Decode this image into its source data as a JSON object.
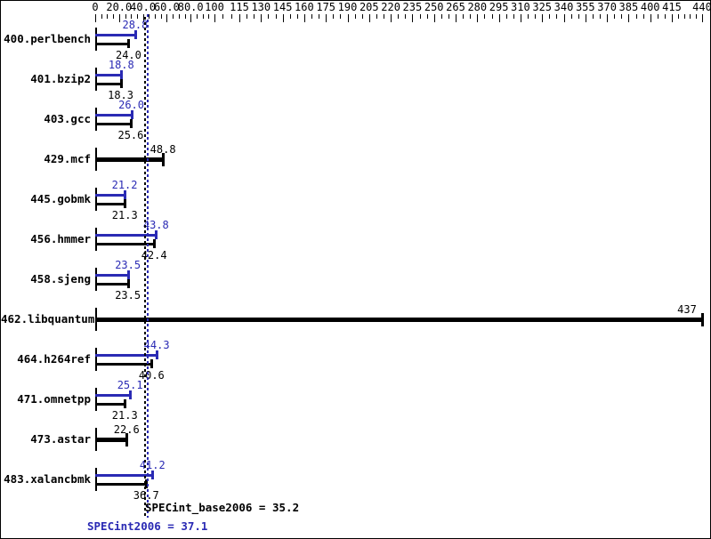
{
  "chart_data": {
    "type": "bar",
    "orientation": "horizontal",
    "title": "",
    "xlabel": "",
    "ylabel": "",
    "grid": false,
    "legend_position": "none",
    "axis_range": [
      0,
      440
    ],
    "axis_tick_labels": [
      "0",
      "20.0",
      "40.0",
      "60.0",
      "80.0",
      "100",
      "115",
      "130",
      "145",
      "160",
      "175",
      "190",
      "205",
      "220",
      "235",
      "250",
      "265",
      "280",
      "295",
      "310",
      "325",
      "340",
      "355",
      "370",
      "385",
      "400",
      "415",
      "440"
    ],
    "axis_tick_values": [
      0,
      20,
      40,
      60,
      80,
      100,
      115,
      130,
      145,
      160,
      175,
      190,
      205,
      220,
      235,
      250,
      265,
      280,
      295,
      310,
      325,
      340,
      355,
      370,
      385,
      400,
      415,
      440
    ],
    "series": [
      {
        "name": "SPECint2006 (peak)",
        "color": "#2a2ab4"
      },
      {
        "name": "SPECint_base2006 (base)",
        "color": "#000000"
      }
    ],
    "benchmarks": [
      {
        "name": "400.perlbench",
        "peak": 28.8,
        "base": 24.0,
        "peak_label": "28.8",
        "base_label": "24.0"
      },
      {
        "name": "401.bzip2",
        "peak": 18.8,
        "base": 18.3,
        "peak_label": "18.8",
        "base_label": "18.3"
      },
      {
        "name": "403.gcc",
        "peak": 26.0,
        "base": 25.6,
        "peak_label": "26.0",
        "base_label": "25.6"
      },
      {
        "name": "429.mcf",
        "single": 48.8,
        "single_label": "48.8"
      },
      {
        "name": "445.gobmk",
        "peak": 21.2,
        "base": 21.3,
        "peak_label": "21.2",
        "base_label": "21.3"
      },
      {
        "name": "456.hmmer",
        "peak": 43.8,
        "base": 42.4,
        "peak_label": "43.8",
        "base_label": "42.4"
      },
      {
        "name": "458.sjeng",
        "peak": 23.5,
        "base": 23.5,
        "peak_label": "23.5",
        "base_label": "23.5"
      },
      {
        "name": "462.libquantum",
        "single": 437,
        "single_label": "437"
      },
      {
        "name": "464.h264ref",
        "peak": 44.3,
        "base": 40.6,
        "peak_label": "44.3",
        "base_label": "40.6"
      },
      {
        "name": "471.omnetpp",
        "peak": 25.1,
        "base": 21.3,
        "peak_label": "25.1",
        "base_label": "21.3"
      },
      {
        "name": "473.astar",
        "single": 22.6,
        "single_label": "22.6"
      },
      {
        "name": "483.xalancbmk",
        "peak": 41.2,
        "base": 36.7,
        "peak_label": "41.2",
        "base_label": "36.7"
      }
    ],
    "reference_lines": [
      {
        "name": "base_mean",
        "value": 35.2,
        "color": "#000000",
        "style": "dotted"
      },
      {
        "name": "peak_mean",
        "value": 37.1,
        "color": "#2a2ab4",
        "style": "dotted"
      }
    ],
    "summary": {
      "base_text": "SPECint_base2006 = 35.2",
      "base_value": 35.2,
      "peak_text": "SPECint2006 = 37.1",
      "peak_value": 37.1
    },
    "colors": {
      "peak_blue": "#2a2ab4",
      "base_black": "#000000",
      "background": "#ffffff"
    }
  }
}
